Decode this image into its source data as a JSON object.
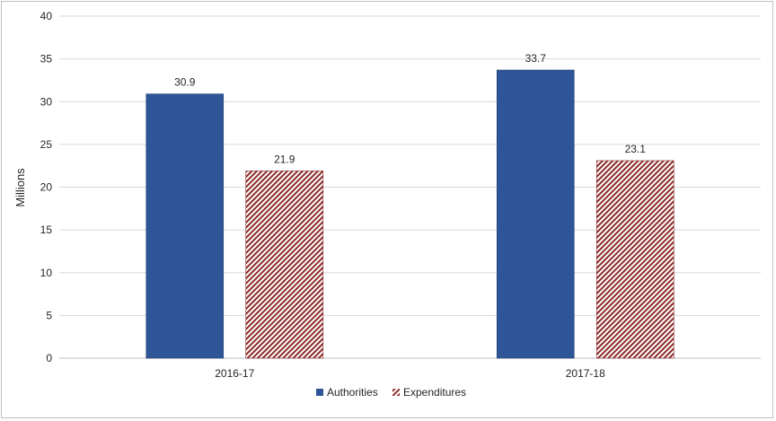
{
  "chart_data": {
    "type": "bar",
    "categories": [
      "2016-17",
      "2017-18"
    ],
    "series": [
      {
        "name": "Authorities",
        "values": [
          30.9,
          33.7
        ],
        "labels": [
          "30.9",
          "33.7"
        ],
        "color": "#2e5597",
        "pattern": "solid"
      },
      {
        "name": "Expenditures",
        "values": [
          21.9,
          23.1
        ],
        "labels": [
          "21.9",
          "23.1"
        ],
        "color": "#8b2b2b",
        "pattern": "diagonal-hatch"
      }
    ],
    "title": "",
    "xlabel": "",
    "ylabel": "Millions",
    "ylim": [
      0,
      40
    ],
    "yticks": [
      "0",
      "5",
      "10",
      "15",
      "20",
      "25",
      "30",
      "35",
      "40"
    ],
    "grid": true,
    "legend_position": "bottom"
  }
}
